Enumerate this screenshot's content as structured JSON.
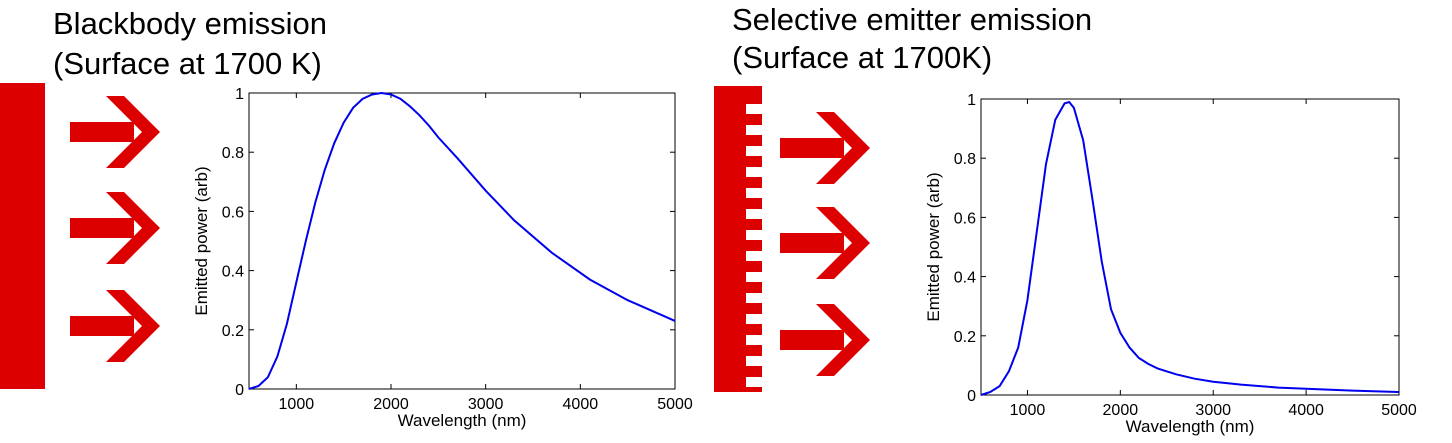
{
  "panels": [
    {
      "heading_line1": "Blackbody emission",
      "heading_line2": "(Surface at 1700 K)",
      "illustration": {
        "surface": "flat-red-surface",
        "arrow_color": "#dd0000",
        "arrow_count": 3
      }
    },
    {
      "heading_line1": "Selective emitter emission",
      "heading_line2": "(Surface at 1700K)",
      "illustration": {
        "surface": "grated-red-surface",
        "arrow_color": "#dd0000",
        "arrow_count": 3
      }
    }
  ],
  "chart_data": [
    {
      "type": "line",
      "title": "",
      "xlabel": "Wavelength (nm)",
      "ylabel": "Emitted power (arb)",
      "xlim": [
        500,
        5000
      ],
      "ylim": [
        0,
        1
      ],
      "xticks": [
        1000,
        2000,
        3000,
        4000,
        5000
      ],
      "yticks": [
        0,
        0.2,
        0.4,
        0.6,
        0.8,
        1
      ],
      "ytick_labels": [
        "0",
        "0.2",
        "0.4",
        "0.6",
        "0.8",
        "1"
      ],
      "grid": false,
      "line_color": "#0000ee",
      "series": [
        {
          "x": [
            500,
            600,
            700,
            800,
            900,
            1000,
            1100,
            1200,
            1300,
            1400,
            1500,
            1600,
            1700,
            1800,
            1900,
            2000,
            2100,
            2200,
            2300,
            2400,
            2500,
            2700,
            3000,
            3300,
            3700,
            4100,
            4500,
            5000
          ],
          "y": [
            0.0,
            0.01,
            0.04,
            0.11,
            0.22,
            0.36,
            0.5,
            0.63,
            0.74,
            0.83,
            0.9,
            0.95,
            0.98,
            0.995,
            1.0,
            0.995,
            0.98,
            0.955,
            0.925,
            0.89,
            0.85,
            0.78,
            0.67,
            0.57,
            0.46,
            0.37,
            0.3,
            0.23
          ]
        }
      ]
    },
    {
      "type": "line",
      "title": "",
      "xlabel": "Wavelength (nm)",
      "ylabel": "Emitted power (arb)",
      "xlim": [
        500,
        5000
      ],
      "ylim": [
        0,
        1
      ],
      "xticks": [
        1000,
        2000,
        3000,
        4000,
        5000
      ],
      "yticks": [
        0,
        0.2,
        0.4,
        0.6,
        0.8,
        1
      ],
      "ytick_labels": [
        "0",
        "0.2",
        "0.4",
        "0.6",
        "0.8",
        "1"
      ],
      "grid": false,
      "line_color": "#0000ee",
      "series": [
        {
          "x": [
            500,
            600,
            700,
            800,
            900,
            1000,
            1100,
            1200,
            1300,
            1400,
            1450,
            1500,
            1600,
            1700,
            1800,
            1900,
            2000,
            2100,
            2200,
            2300,
            2400,
            2600,
            2800,
            3000,
            3300,
            3700,
            4100,
            4500,
            5000
          ],
          "y": [
            0.0,
            0.01,
            0.03,
            0.08,
            0.16,
            0.32,
            0.55,
            0.78,
            0.93,
            0.985,
            0.99,
            0.97,
            0.86,
            0.66,
            0.45,
            0.29,
            0.21,
            0.16,
            0.125,
            0.105,
            0.09,
            0.07,
            0.055,
            0.045,
            0.035,
            0.025,
            0.02,
            0.015,
            0.01
          ]
        }
      ]
    }
  ]
}
